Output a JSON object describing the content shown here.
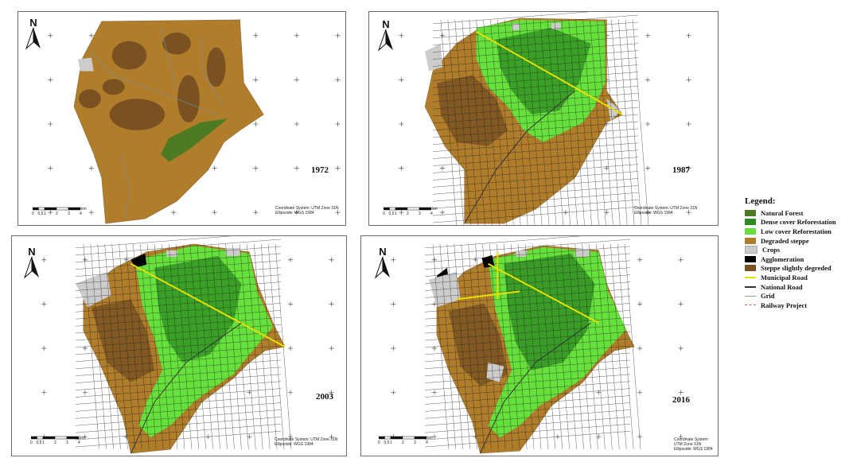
{
  "colors": {
    "natural_forest": "#4d7a22",
    "dense_reforestation": "#2e8b22",
    "low_reforestation": "#66e03a",
    "degraded_steppe": "#b07d2a",
    "crops": "#cccccc",
    "agglomeration": "#000000",
    "steppe_slightly": "#7a5222",
    "municipal_road": "#e8e000",
    "national_road": "#333333",
    "grid": "#999999",
    "railway": "#d06060"
  },
  "panels": [
    {
      "year": "1972",
      "coord_line1": "Coordinate System: UTM Zone 31N",
      "coord_line2": "Ellipsoide: WGS 1984"
    },
    {
      "year": "1987",
      "coord_line1": "Coordinate System: UTM Zone 31N",
      "coord_line2": "Ellipsoide: WGS 1984"
    },
    {
      "year": "2003",
      "coord_line1": "Coordinate System: UTM Zone 31N",
      "coord_line2": "Ellipsoide: WGS 1984"
    },
    {
      "year": "2016",
      "coord_line1": "Coordinate System: UTM Zone 31N",
      "coord_line2": "Ellipsoide: WGS 1984"
    }
  ],
  "north_label": "N",
  "scale": {
    "labels": [
      "0",
      "0,5",
      "1",
      "2",
      "3",
      "4"
    ],
    "unit": "km"
  },
  "legend": {
    "title": "Legend:",
    "items": [
      {
        "label": "Natural Forest",
        "kind": "fill",
        "color": "#4d7a22"
      },
      {
        "label": "Dense cover Reforestation",
        "kind": "fill",
        "color": "#2e8b22"
      },
      {
        "label": "Low cover Reforestation",
        "kind": "fill",
        "color": "#66e03a"
      },
      {
        "label": "Degraded steppe",
        "kind": "fill",
        "color": "#b07d2a"
      },
      {
        "label": "Crops",
        "kind": "fill",
        "color": "#cccccc"
      },
      {
        "label": "Agglomeration",
        "kind": "fill",
        "color": "#000000"
      },
      {
        "label": "Steppe slightly degreded",
        "kind": "fill",
        "color": "#7a5222"
      },
      {
        "label": "Municipal Road",
        "kind": "line",
        "color": "#e8e000"
      },
      {
        "label": "National Road",
        "kind": "line",
        "color": "#333333"
      },
      {
        "label": "Grid",
        "kind": "line",
        "color": "#999999"
      },
      {
        "label": "Railway Project",
        "kind": "dash",
        "color": "#d06060"
      }
    ]
  }
}
